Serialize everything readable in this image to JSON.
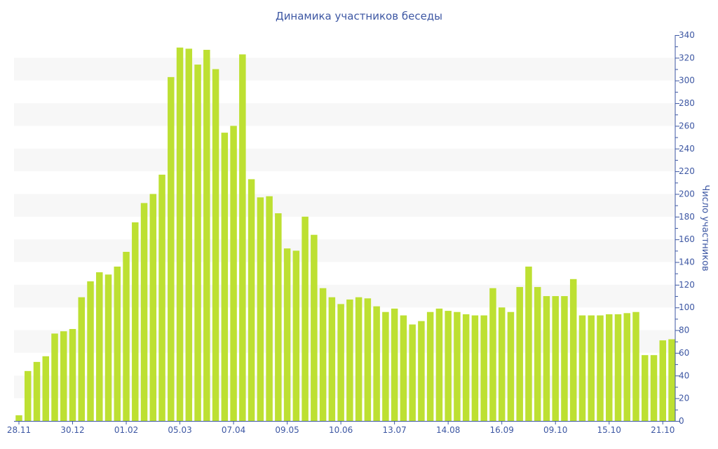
{
  "chart_data": {
    "type": "bar",
    "title": "Динамика участников беседы",
    "xlabel": "",
    "ylabel": "Число участников",
    "ylim": [
      0,
      340
    ],
    "y_ticks": [
      0,
      20,
      40,
      60,
      80,
      100,
      120,
      140,
      160,
      180,
      200,
      220,
      240,
      260,
      280,
      300,
      320,
      340
    ],
    "y_axis_side": "right",
    "grid": "alternating horizontal bands",
    "colors": {
      "bar": "#bde032",
      "band": "#f7f7f7",
      "axis": "#3d57a3",
      "text": "#3d57a3"
    },
    "x_tick_labels": [
      "28.11",
      "30.12",
      "01.02",
      "05.03",
      "07.04",
      "09.05",
      "10.06",
      "13.07",
      "14.08",
      "16.09",
      "09.10",
      "15.10",
      "21.10"
    ],
    "x_tick_every": 6,
    "values": [
      5,
      44,
      52,
      57,
      77,
      79,
      81,
      109,
      123,
      131,
      129,
      136,
      149,
      175,
      192,
      200,
      217,
      303,
      329,
      328,
      314,
      327,
      310,
      254,
      260,
      323,
      213,
      197,
      198,
      183,
      152,
      150,
      180,
      164,
      117,
      109,
      103,
      107,
      109,
      108,
      101,
      96,
      99,
      93,
      85,
      88,
      96,
      99,
      97,
      96,
      94,
      93,
      93,
      117,
      100,
      96,
      118,
      136,
      118,
      110,
      110,
      110,
      125,
      93,
      93,
      93,
      94,
      94,
      95,
      96,
      58,
      58,
      71,
      72
    ]
  }
}
